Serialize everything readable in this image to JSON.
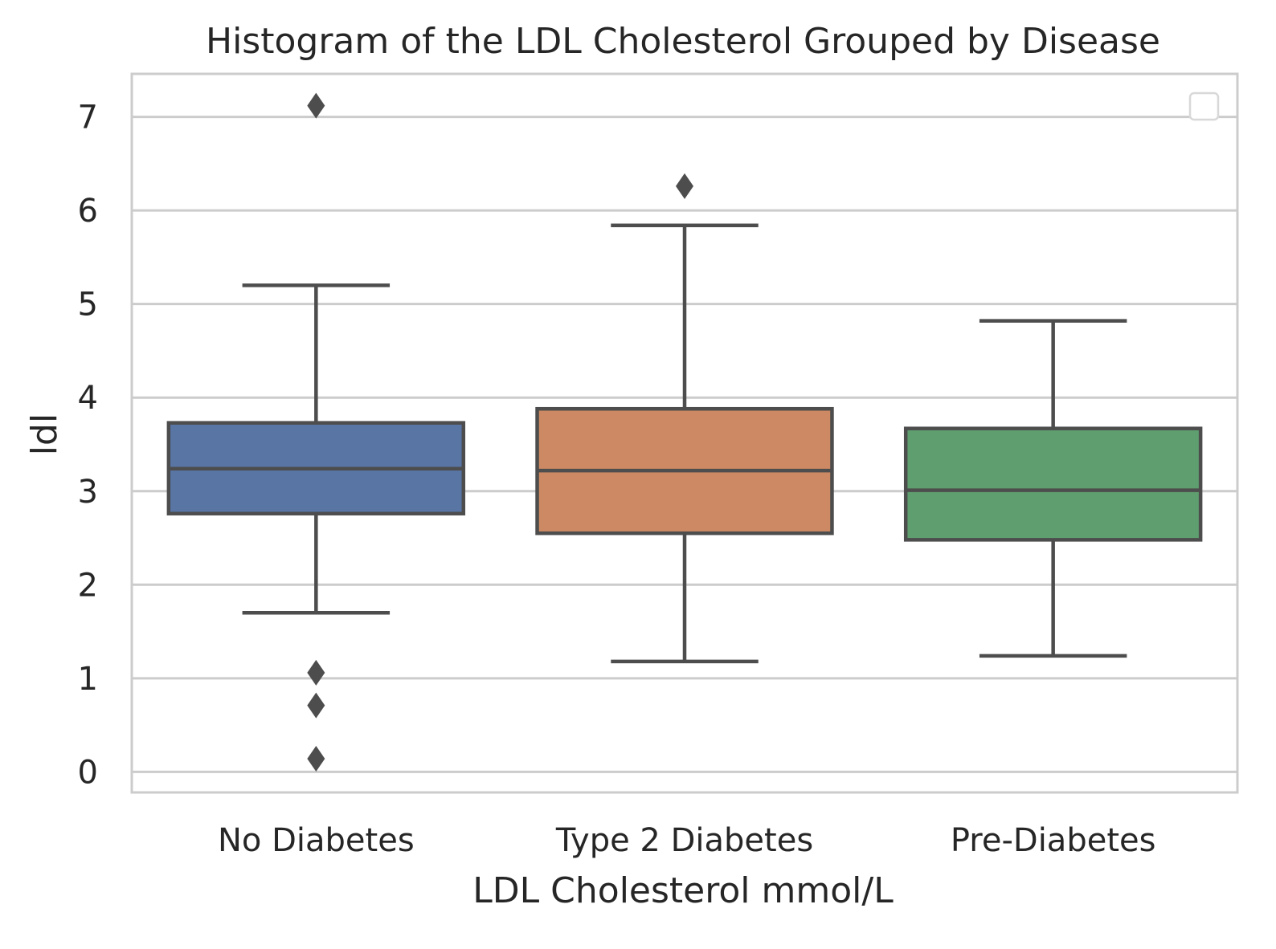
{
  "chart_data": {
    "type": "box",
    "title": "Histogram of the LDL Cholesterol Grouped by Disease",
    "xlabel": "LDL Cholesterol mmol/L",
    "ylabel": "ldl",
    "ylim": [
      -0.22,
      7.46
    ],
    "yticks": [
      0,
      1,
      2,
      3,
      4,
      5,
      6,
      7
    ],
    "grid": true,
    "legend": "top-right (empty)",
    "categories": [
      "No Diabetes",
      "Type 2 Diabetes",
      "Pre-Diabetes"
    ],
    "series": [
      {
        "category": "No Diabetes",
        "color": "#5875a4",
        "whisker_low": 1.7,
        "q1": 2.76,
        "median": 3.24,
        "q3": 3.73,
        "whisker_high": 5.2,
        "outliers": [
          7.12,
          1.06,
          0.71,
          0.14
        ]
      },
      {
        "category": "Type 2 Diabetes",
        "color": "#cc8963",
        "whisker_low": 1.18,
        "q1": 2.55,
        "median": 3.22,
        "q3": 3.88,
        "whisker_high": 5.84,
        "outliers": [
          6.26
        ]
      },
      {
        "category": "Pre-Diabetes",
        "color": "#5f9e6e",
        "whisker_low": 1.24,
        "q1": 2.48,
        "median": 3.01,
        "q3": 3.67,
        "whisker_high": 4.82,
        "outliers": []
      }
    ]
  }
}
